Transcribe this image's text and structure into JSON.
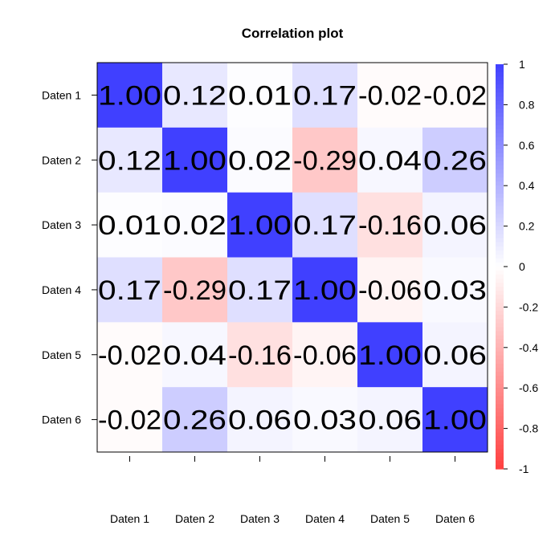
{
  "chart_data": {
    "type": "heatmap",
    "title": "Correlation plot",
    "rows": [
      "Daten 1",
      "Daten 2",
      "Daten 3",
      "Daten 4",
      "Daten 5",
      "Daten 6"
    ],
    "columns": [
      "Daten 1",
      "Daten 2",
      "Daten 3",
      "Daten 4",
      "Daten 5",
      "Daten 6"
    ],
    "values": [
      [
        1.0,
        0.12,
        0.01,
        0.17,
        -0.02,
        -0.02
      ],
      [
        0.12,
        1.0,
        0.02,
        -0.29,
        0.04,
        0.26
      ],
      [
        0.01,
        0.02,
        1.0,
        0.17,
        -0.16,
        0.06
      ],
      [
        0.17,
        -0.29,
        0.17,
        1.0,
        -0.06,
        0.03
      ],
      [
        -0.02,
        0.04,
        -0.16,
        -0.06,
        1.0,
        0.06
      ],
      [
        -0.02,
        0.26,
        0.06,
        0.03,
        0.06,
        1.0
      ]
    ],
    "value_labels": [
      [
        "1.00",
        "0.12",
        "0.01",
        "0.17",
        "-0.02",
        "-0.02"
      ],
      [
        "0.12",
        "1.00",
        "0.02",
        "-0.29",
        "0.04",
        "0.26"
      ],
      [
        "0.01",
        "0.02",
        "1.00",
        "0.17",
        "-0.16",
        "0.06"
      ],
      [
        "0.17",
        "-0.29",
        "0.17",
        "1.00",
        "-0.06",
        "0.03"
      ],
      [
        "-0.02",
        "0.04",
        "-0.16",
        "-0.06",
        "1.00",
        "0.06"
      ],
      [
        "-0.02",
        "0.26",
        "0.06",
        "0.03",
        "0.06",
        "1.00"
      ]
    ],
    "colorbar": {
      "min": -1,
      "max": 1,
      "low_color": "#ff4040",
      "mid_color": "#ffffff",
      "high_color": "#4040ff",
      "ticks": [
        1,
        0.8,
        0.6,
        0.4,
        0.2,
        0,
        -0.2,
        -0.4,
        -0.6,
        -0.8,
        -1
      ],
      "tick_labels": [
        "1",
        "0.8",
        "0.6",
        "0.4",
        "0.2",
        "0",
        "-0.2",
        "-0.4",
        "-0.6",
        "-0.8",
        "-1"
      ],
      "placement": "right"
    },
    "grid": false
  }
}
